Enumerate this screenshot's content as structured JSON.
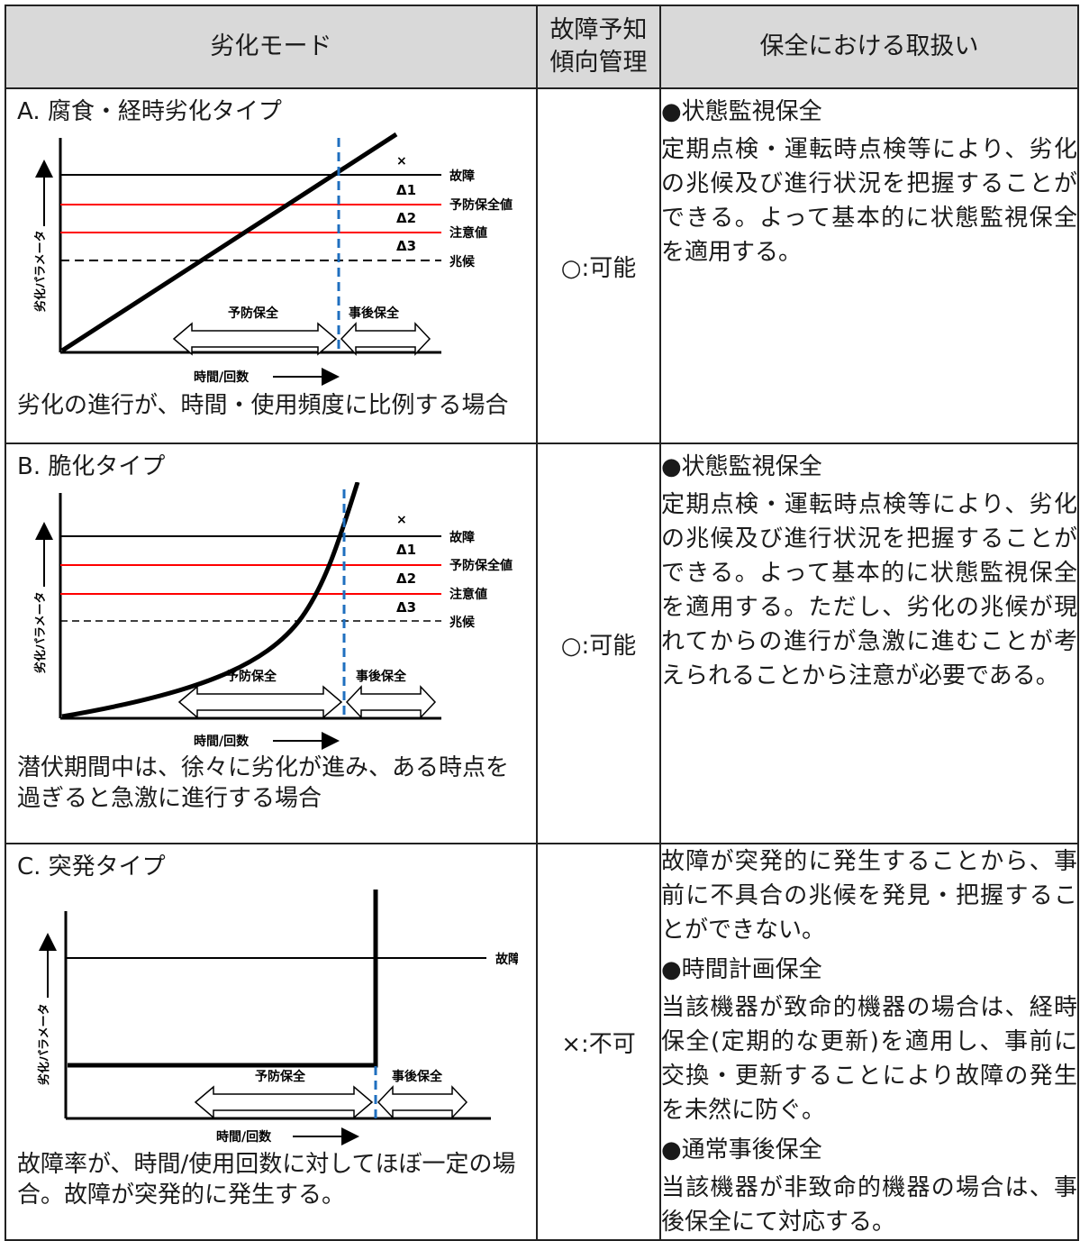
{
  "header": {
    "mode": "劣化モード",
    "prediction": "故障予知\n傾向管理",
    "maintenance": "保全における取扱い"
  },
  "rows": [
    {
      "title": "A. 腐食・経時劣化タイプ",
      "caption": "劣化の進行が、時間・使用頻度に比例する場合",
      "prediction": "○:可能",
      "maintenance": [
        {
          "kind": "head",
          "text": "●状態監視保全"
        },
        {
          "kind": "body",
          "text": "定期点検・運転時点検等により、劣化の兆候及び進行状況を把握することができる。よって基本的に状態監視保全を適用する。"
        }
      ],
      "chart": {
        "type": "line-diagram",
        "ylabel": "劣化パラメータ",
        "xlabel": "時間/回数",
        "levels": [
          "故障",
          "予防保全値",
          "注意値",
          "兆候"
        ],
        "marks": [
          "×",
          "Δ1",
          "Δ2",
          "Δ3"
        ],
        "zones": [
          "予防保全",
          "事後保全"
        ]
      }
    },
    {
      "title": "B. 脆化タイプ",
      "caption": "潜伏期間中は、徐々に劣化が進み、ある時点を過ぎると急激に進行する場合",
      "prediction": "○:可能",
      "maintenance": [
        {
          "kind": "head",
          "text": "●状態監視保全"
        },
        {
          "kind": "body",
          "text": "定期点検・運転時点検等により、劣化の兆候及び進行状況を把握することができる。よって基本的に状態監視保全を適用する。ただし、劣化の兆候が現れてからの進行が急激に進むことが考えられることから注意が必要である。"
        }
      ],
      "chart": {
        "type": "curve-diagram",
        "ylabel": "劣化パラメータ",
        "xlabel": "時間/回数",
        "levels": [
          "故障",
          "予防保全値",
          "注意値",
          "兆候"
        ],
        "marks": [
          "×",
          "Δ1",
          "Δ2",
          "Δ3"
        ],
        "zones": [
          "予防保全",
          "事後保全"
        ]
      }
    },
    {
      "title": "C. 突発タイプ",
      "caption": "故障率が、時間/使用回数に対してほぼ一定の場合。故障が突発的に発生する。",
      "prediction": "×:不可",
      "maintenance": [
        {
          "kind": "body",
          "text": "故障が突発的に発生することから、事前に不具合の兆候を発見・把握することができない。"
        },
        {
          "kind": "head",
          "text": "●時間計画保全"
        },
        {
          "kind": "body",
          "text": "当該機器が致命的機器の場合は、経時保全(定期的な更新)を適用し、事前に交換・更新することにより故障の発生を未然に防ぐ。"
        },
        {
          "kind": "head",
          "text": "●通常事後保全"
        },
        {
          "kind": "body",
          "text": "当該機器が非致命的機器の場合は、事後保全にて対応する。"
        }
      ],
      "chart": {
        "type": "step-diagram",
        "ylabel": "劣化パラメータ",
        "xlabel": "時間/回数",
        "levels": [
          "故障"
        ],
        "zones": [
          "予防保全",
          "事後保全"
        ]
      }
    }
  ],
  "colors": {
    "header_bg": "#d9d9d9",
    "threshold_red": "#ff0000",
    "divider_blue": "#1f6fbf"
  }
}
